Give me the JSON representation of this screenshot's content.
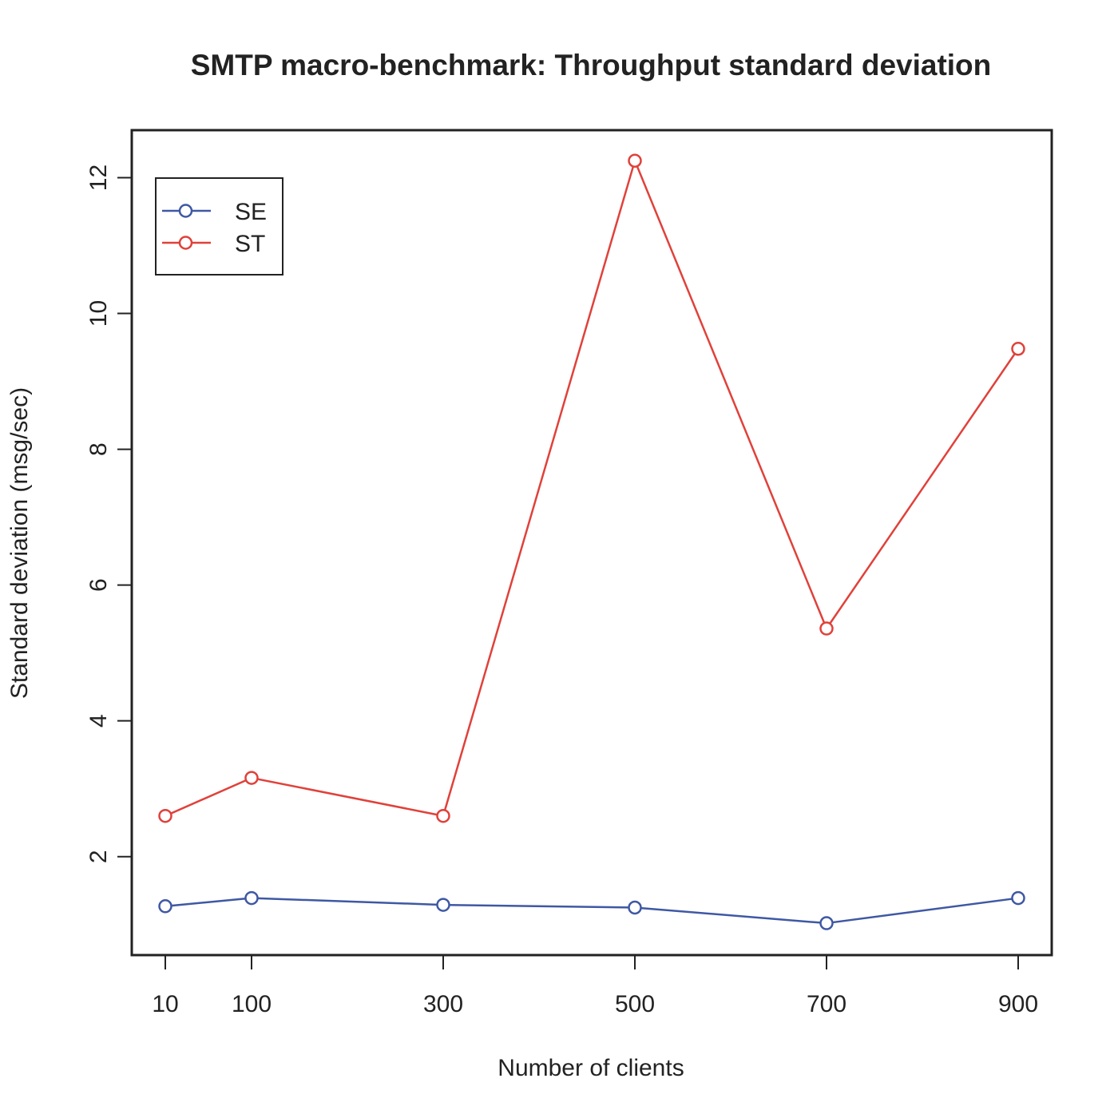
{
  "chart_data": {
    "type": "line",
    "title": "SMTP macro-benchmark: Throughput standard deviation",
    "xlabel": "Number of clients",
    "ylabel": "Standard deviation (msg/sec)",
    "x": [
      10,
      100,
      300,
      500,
      700,
      900
    ],
    "x_tick_labels": [
      "10",
      "100",
      "300",
      "500",
      "700",
      "900"
    ],
    "y_ticks": [
      2,
      4,
      6,
      8,
      10,
      12
    ],
    "y_tick_labels": [
      "2",
      "4",
      "6",
      "8",
      "10",
      "12"
    ],
    "xlim": [
      -25,
      935
    ],
    "ylim": [
      0.55,
      12.7
    ],
    "grid": false,
    "legend_position": "top-left",
    "series": [
      {
        "name": "SE",
        "color": "#3f58a4",
        "marker": "open-circle",
        "values": [
          1.27,
          1.39,
          1.29,
          1.25,
          1.02,
          1.39
        ]
      },
      {
        "name": "ST",
        "color": "#e0413a",
        "marker": "open-circle",
        "values": [
          2.6,
          3.16,
          2.6,
          12.25,
          5.36,
          9.48
        ]
      }
    ]
  }
}
